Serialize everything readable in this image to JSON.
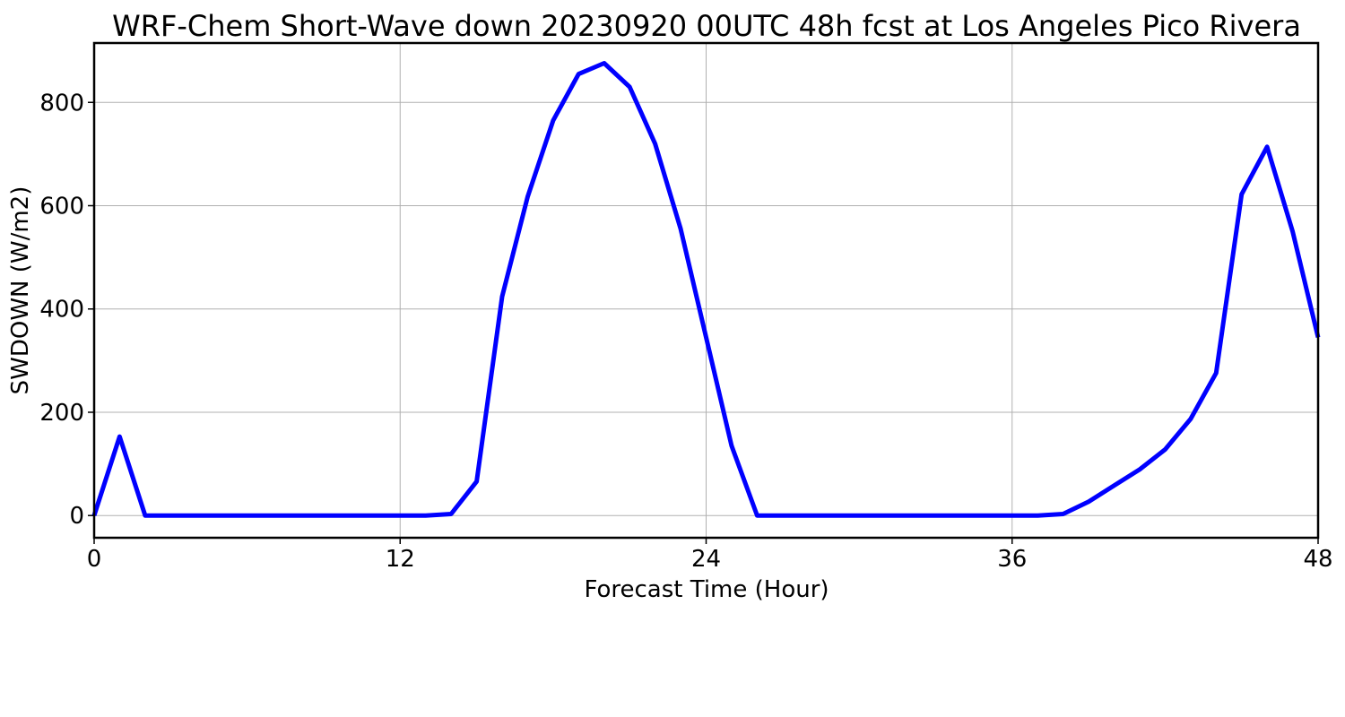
{
  "chart_data": {
    "type": "line",
    "title": "WRF-Chem Short-Wave down  20230920 00UTC 48h fcst at Los Angeles Pico Rivera",
    "xlabel": "Forecast Time (Hour)",
    "ylabel": "SWDOWN  (W/m2)",
    "xlim": [
      0,
      48
    ],
    "ylim": [
      -43,
      915
    ],
    "xticks": [
      0,
      12,
      24,
      36,
      48
    ],
    "xtick_labels": [
      "0",
      "12",
      "24",
      "36",
      "48"
    ],
    "yticks": [
      0,
      200,
      400,
      600,
      800
    ],
    "ytick_labels": [
      "0",
      "200",
      "400",
      "600",
      "800"
    ],
    "grid": true,
    "line_color": "#0000ff",
    "series": [
      {
        "x": [
          0,
          1,
          2,
          3,
          4,
          5,
          6,
          7,
          8,
          9,
          10,
          11,
          12,
          13,
          14,
          15,
          16,
          17,
          18,
          19,
          20,
          21,
          22,
          23,
          24,
          25,
          26,
          27,
          28,
          29,
          30,
          31,
          32,
          33,
          34,
          35,
          36,
          37,
          38,
          39,
          40,
          41,
          42,
          43,
          44,
          45,
          46,
          47,
          48
        ],
        "values": [
          0,
          153,
          0,
          0,
          0,
          0,
          0,
          0,
          0,
          0,
          0,
          0,
          0,
          0,
          3,
          66,
          424,
          617,
          765,
          855,
          876,
          830,
          720,
          555,
          345,
          135,
          0,
          0,
          0,
          0,
          0,
          0,
          0,
          0,
          0,
          0,
          0,
          0,
          3,
          27,
          58,
          89,
          128,
          187,
          276,
          622,
          714,
          550,
          345
        ]
      }
    ]
  }
}
